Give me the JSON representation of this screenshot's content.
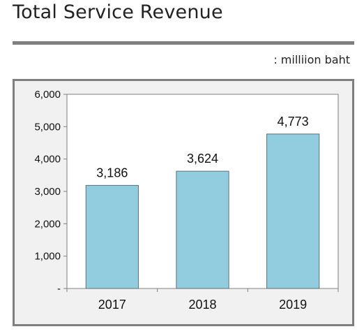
{
  "header": {
    "title": "Total Service Revenue",
    "unit": ": milliion baht"
  },
  "colors": {
    "bar_fill": "#92cddf",
    "bar_stroke": "#5f6f77",
    "plot_bg": "#ffffff",
    "frame_bg": "#f1f1f1",
    "axis": "#808080"
  },
  "chart_data": {
    "type": "bar",
    "categories": [
      "2017",
      "2018",
      "2019"
    ],
    "values": [
      3186,
      3624,
      4773
    ],
    "data_labels": [
      "3,186",
      "3,624",
      "4,773"
    ],
    "ylim": [
      0,
      6000
    ],
    "yticks": [
      0,
      1000,
      2000,
      3000,
      4000,
      5000,
      6000
    ],
    "ytick_labels": [
      "-",
      "1,000",
      "2,000",
      "3,000",
      "4,000",
      "5,000",
      "6,000"
    ],
    "grid": false,
    "legend": "none"
  }
}
